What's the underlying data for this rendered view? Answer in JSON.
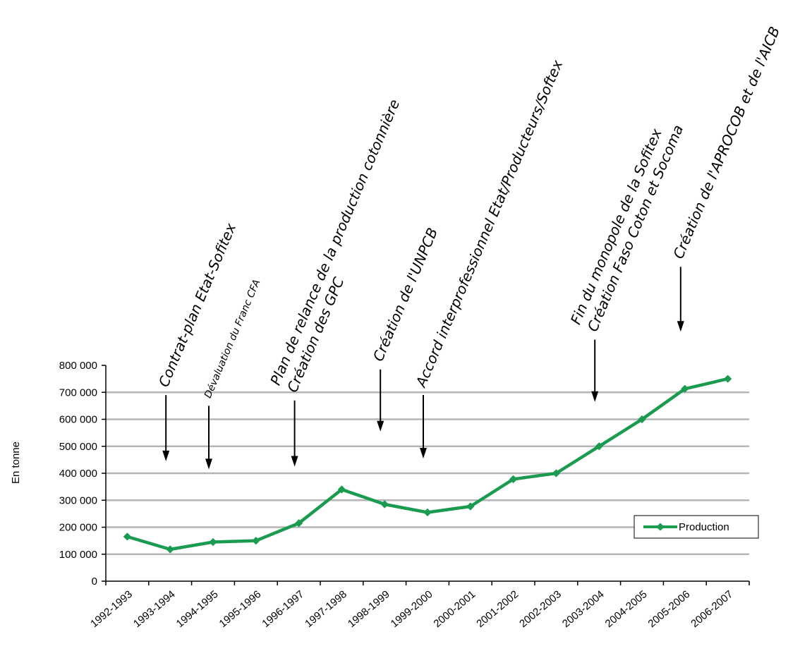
{
  "chart_data": {
    "type": "line",
    "ylabel": "En tonne",
    "ylim": [
      0,
      800000
    ],
    "yticks": [
      "0",
      "100 000",
      "200 000",
      "300 000",
      "400 000",
      "500 000",
      "600 000",
      "700 000",
      "800 000"
    ],
    "grid": "horizontal",
    "legend_placement": "bottom-right",
    "series_color": "#1a9b50",
    "categories": [
      "1992-1993",
      "1993-1994",
      "1994-1995",
      "1995-1996",
      "1996-1997",
      "1997-1998",
      "1998-1999",
      "1999-2000",
      "2000-2001",
      "2001-2002",
      "2002-2003",
      "2003-2004",
      "2004-2005",
      "2005-2006",
      "2006-2007"
    ],
    "series": [
      {
        "name": "Production",
        "values": [
          165000,
          118000,
          145000,
          150000,
          215000,
          340000,
          285000,
          255000,
          277000,
          378000,
          400000,
          500000,
          600000,
          713000,
          750000
        ]
      }
    ],
    "annotations": [
      {
        "lines": [
          "Contrat-plan Etat-Sofitex"
        ],
        "category": "1993-1994",
        "arrow_from": 690000,
        "arrow_to": 450000,
        "size": "normal"
      },
      {
        "lines": [
          "Dévaluation du Franc CFA"
        ],
        "category": "1994-1995",
        "arrow_from": 650000,
        "arrow_to": 420000,
        "size": "small"
      },
      {
        "lines": [
          "Plan de relance de la production cotonnière",
          "Création des GPC"
        ],
        "category": "1996-1997",
        "arrow_from": 670000,
        "arrow_to": 430000,
        "size": "normal"
      },
      {
        "lines": [
          "Création de l'UNPCB"
        ],
        "category": "1998-1999",
        "arrow_from": 785000,
        "arrow_to": 560000,
        "size": "normal"
      },
      {
        "lines": [
          "Accord interprofessionnel Etat/Producteurs/Softex"
        ],
        "category": "1999-2000",
        "arrow_from": 690000,
        "arrow_to": 460000,
        "size": "normal"
      },
      {
        "lines": [
          "Fin du monopole de la Sofitex",
          "Création Faso Coton et Socoma"
        ],
        "category": "2003-2004",
        "arrow_from": 895000,
        "arrow_to": 670000,
        "size": "normal"
      },
      {
        "lines": [
          "Création de l'APROCOB et de l'AICB"
        ],
        "category": "2005-2006",
        "arrow_from": 1165000,
        "arrow_to": 930000,
        "size": "normal"
      }
    ]
  }
}
